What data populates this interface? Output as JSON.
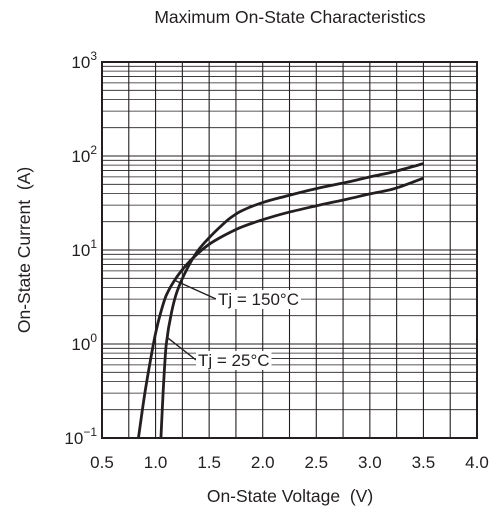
{
  "chart_data": {
    "type": "line",
    "title": "Maximum On-State Characteristics",
    "xlabel": "On-State Voltage  (V)",
    "ylabel": "On-State Current  (A)",
    "xlim": [
      0.5,
      4.0
    ],
    "ylim": [
      0.1,
      1000
    ],
    "yscale": "log",
    "grid": true,
    "x_ticks": [
      "0.5",
      "1.0",
      "1.5",
      "2.0",
      "2.5",
      "3.0",
      "3.5",
      "4.0"
    ],
    "y_ticks": [
      {
        "base": "10",
        "exp": "3"
      },
      {
        "base": "10",
        "exp": "2"
      },
      {
        "base": "10",
        "exp": "1"
      },
      {
        "base": "10",
        "exp": "0"
      },
      {
        "base": "10",
        "exp": "−1"
      }
    ],
    "series": [
      {
        "name": "Tj = 150°C",
        "x": [
          0.84,
          0.9,
          0.95,
          1.0,
          1.05,
          1.1,
          1.2,
          1.3,
          1.4,
          1.5,
          1.6,
          1.7,
          1.8,
          2.0,
          2.2,
          2.5,
          2.8,
          3.0,
          3.2,
          3.5
        ],
        "y": [
          0.1,
          0.3,
          0.65,
          1.3,
          2.2,
          3.3,
          5.2,
          7.2,
          9.3,
          11.5,
          13.5,
          15.5,
          17.5,
          21,
          24.5,
          29.5,
          35,
          39.5,
          44,
          58
        ]
      },
      {
        "name": "Tj = 25°C",
        "x": [
          1.05,
          1.07,
          1.1,
          1.15,
          1.2,
          1.3,
          1.4,
          1.5,
          1.6,
          1.7,
          1.8,
          2.0,
          2.2,
          2.5,
          2.8,
          3.0,
          3.2,
          3.5
        ],
        "y": [
          0.1,
          0.3,
          1.0,
          2.2,
          3.6,
          6.5,
          10,
          13.5,
          17.5,
          22,
          26,
          32,
          37,
          45,
          53,
          60,
          67,
          83
        ]
      }
    ],
    "annotations": [
      {
        "text": "Tj = 150°C",
        "series": 0,
        "at_x": 1.18
      },
      {
        "text": "Tj = 25°C",
        "series": 1,
        "at_x": 1.11
      }
    ]
  }
}
